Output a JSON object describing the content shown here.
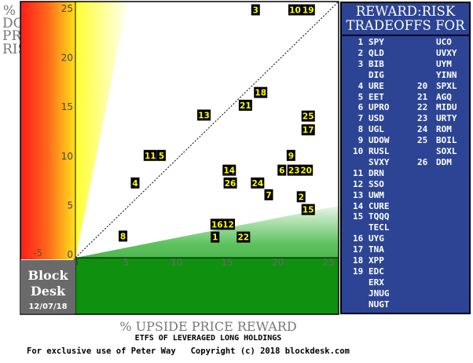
{
  "chart_data": {
    "type": "scatter",
    "title": "REWARD:RISK TRADEOFFS FOR",
    "xlabel": "% UPSIDE PRICE REWARD",
    "ylabel": "% DOWNSIDE PRICE RISK",
    "xlim": [
      0,
      25
    ],
    "ylim": [
      0,
      25
    ],
    "x_ticks": [
      "0",
      "5",
      "10",
      "15",
      "20",
      "25"
    ],
    "y_ticks": [
      "0",
      "5",
      "10",
      "15",
      "20",
      "25"
    ],
    "corner_label": "-5",
    "points": [
      {
        "id": "1",
        "x": 13.8,
        "y": 1.7
      },
      {
        "id": "2",
        "x": 22.3,
        "y": 5.8
      },
      {
        "id": "3",
        "x": 17.8,
        "y": 24.8
      },
      {
        "id": "4",
        "x": 5.9,
        "y": 7.2
      },
      {
        "id": "5",
        "x": 8.5,
        "y": 10.0
      },
      {
        "id": "6",
        "x": 20.4,
        "y": 8.5
      },
      {
        "id": "7",
        "x": 19.1,
        "y": 6.0
      },
      {
        "id": "8",
        "x": 4.7,
        "y": 1.8
      },
      {
        "id": "9",
        "x": 21.3,
        "y": 10.0
      },
      {
        "id": "10",
        "x": 21.7,
        "y": 24.8
      },
      {
        "id": "11",
        "x": 7.4,
        "y": 10.0
      },
      {
        "id": "12",
        "x": 15.1,
        "y": 3.0
      },
      {
        "id": "13",
        "x": 12.7,
        "y": 14.1
      },
      {
        "id": "14",
        "x": 15.2,
        "y": 8.5
      },
      {
        "id": "15",
        "x": 23.0,
        "y": 4.5
      },
      {
        "id": "16",
        "x": 14.0,
        "y": 3.0
      },
      {
        "id": "17",
        "x": 23.0,
        "y": 12.6
      },
      {
        "id": "18",
        "x": 18.3,
        "y": 16.4
      },
      {
        "id": "19",
        "x": 23.0,
        "y": 24.8
      },
      {
        "id": "20",
        "x": 22.8,
        "y": 8.5
      },
      {
        "id": "21",
        "x": 16.8,
        "y": 15.1
      },
      {
        "id": "22",
        "x": 16.6,
        "y": 1.7
      },
      {
        "id": "23",
        "x": 21.6,
        "y": 8.5
      },
      {
        "id": "24",
        "x": 18.0,
        "y": 7.2
      },
      {
        "id": "25",
        "x": 23.0,
        "y": 14.0
      },
      {
        "id": "26",
        "x": 15.3,
        "y": 7.2
      }
    ],
    "legend": [
      {
        "id": "1",
        "symbols": [
          "SPY",
          "UCO"
        ]
      },
      {
        "id": "2",
        "symbols": [
          "QLD",
          "UVXY"
        ]
      },
      {
        "id": "3",
        "symbols": [
          "BIB",
          "UYM"
        ]
      },
      {
        "id": "",
        "symbols": [
          "DIG",
          "YINN"
        ]
      },
      {
        "id": "4",
        "symbols": [
          "URE"
        ],
        "id2": "20",
        "symbols2": [
          "SPXL"
        ]
      },
      {
        "id": "5",
        "symbols": [
          "EET"
        ],
        "id2": "21",
        "symbols2": [
          "AGQ"
        ]
      },
      {
        "id": "6",
        "symbols": [
          "UPRO"
        ],
        "id2": "22",
        "symbols2": [
          "MIDU"
        ]
      },
      {
        "id": "7",
        "symbols": [
          "USD"
        ],
        "id2": "23",
        "symbols2": [
          "URTY"
        ]
      },
      {
        "id": "8",
        "symbols": [
          "UGL"
        ],
        "id2": "24",
        "symbols2": [
          "ROM"
        ]
      },
      {
        "id": "9",
        "symbols": [
          "UDOW"
        ],
        "id2": "25",
        "symbols2": [
          "BOIL"
        ]
      },
      {
        "id": "10",
        "symbols": [
          "RUSL",
          "SOXL"
        ]
      },
      {
        "id": "",
        "symbols": [
          "SVXY"
        ],
        "id2": "26",
        "symbols2": [
          "DDM"
        ]
      },
      {
        "id": "11",
        "symbols": [
          "DRN"
        ]
      },
      {
        "id": "12",
        "symbols": [
          "SSO"
        ]
      },
      {
        "id": "13",
        "symbols": [
          "UWM"
        ]
      },
      {
        "id": "14",
        "symbols": [
          "CURE"
        ]
      },
      {
        "id": "15",
        "symbols": [
          "TQQQ"
        ]
      },
      {
        "id": "",
        "symbols": [
          "TECL"
        ]
      },
      {
        "id": "16",
        "symbols": [
          "UYG"
        ]
      },
      {
        "id": "17",
        "symbols": [
          "TNA"
        ]
      },
      {
        "id": "18",
        "symbols": [
          "XPP"
        ]
      },
      {
        "id": "19",
        "symbols": [
          "EDC"
        ]
      },
      {
        "id": "",
        "symbols": [
          "ERX"
        ]
      },
      {
        "id": "",
        "symbols": [
          "JNUG"
        ]
      },
      {
        "id": "",
        "symbols": [
          "NUGT"
        ]
      }
    ]
  },
  "branding": {
    "name": "Block\nDesk",
    "date": "12/07/18"
  },
  "subtitle": "ETFS OF LEVERAGED LONG HOLDINGS",
  "credit": "For exclusive use of Peter Way   Copyright (c) 2018 blockdesk.com",
  "colors": {
    "marker_bg": "#000000",
    "marker_fg": "#ffff00",
    "legend_bg": "#2c4493",
    "reward_green": "#1a9a1a",
    "risk_red": "#ff2020",
    "risk_yellow": "#ffff40"
  }
}
